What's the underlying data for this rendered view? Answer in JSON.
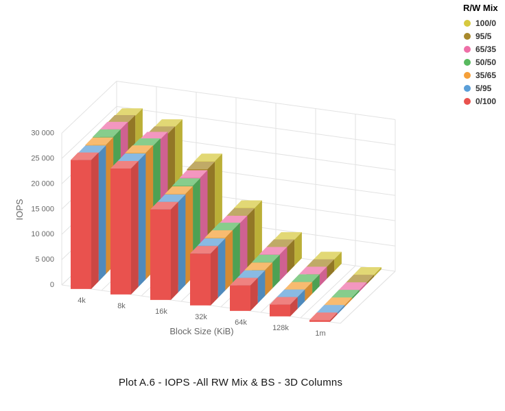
{
  "chart_data": {
    "type": "bar",
    "variant": "3d-columns",
    "title": "Plot A.6 - IOPS -All RW Mix & BS - 3D Columns",
    "xlabel": "Block Size (KiB)",
    "ylabel": "IOPS",
    "legend_title": "R/W Mix",
    "legend_position": "top-right",
    "grid": true,
    "categories": [
      "4k",
      "8k",
      "16k",
      "32k",
      "64k",
      "128k",
      "1m"
    ],
    "yticks": [
      0,
      5000,
      10000,
      15000,
      20000,
      25000,
      30000
    ],
    "ylim": [
      0,
      30000
    ],
    "thousands_separator": " ",
    "series_order_note": "legend order; depth order in 3D is same list back-to-front (100/0 deepest, 0/100 front)",
    "series": [
      {
        "name": "100/0",
        "color": "#d7c93f",
        "values": [
          25300,
          24200,
          18500,
          10350,
          5150,
          2350,
          380
        ]
      },
      {
        "name": "95/5",
        "color": "#a8892c",
        "values": [
          25450,
          24300,
          18400,
          10300,
          5200,
          2350,
          375
        ]
      },
      {
        "name": "65/35",
        "color": "#ee6fa7",
        "values": [
          25600,
          24700,
          18200,
          10300,
          5200,
          2360,
          370
        ]
      },
      {
        "name": "50/50",
        "color": "#58b95f",
        "values": [
          25600,
          24900,
          18100,
          10400,
          5150,
          2350,
          365
        ]
      },
      {
        "name": "35/65",
        "color": "#f5a039",
        "values": [
          25500,
          25000,
          18000,
          10400,
          5100,
          2340,
          360
        ]
      },
      {
        "name": "5/95",
        "color": "#5b9fd8",
        "values": [
          25400,
          24900,
          17900,
          10300,
          5050,
          2340,
          355
        ]
      },
      {
        "name": "0/100",
        "color": "#e9524e",
        "values": [
          25500,
          24900,
          17900,
          10250,
          5050,
          2340,
          350
        ]
      }
    ],
    "colors": {
      "axis_label": "#666666",
      "grid_line": "#e2e2e2",
      "title": "#151515",
      "legend_text": "#333333"
    }
  }
}
